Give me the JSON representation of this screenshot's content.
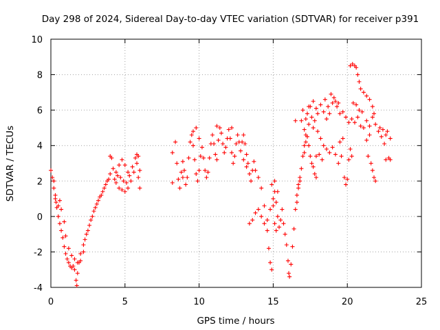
{
  "chart_data": {
    "type": "scatter",
    "title": "Day 298 of 2024, Sidereal Day-to-day VTEC variation (SDTVAR) for receiver p391",
    "xlabel": "GPS time / hours",
    "ylabel": "SDTVAR / TECUs",
    "xlim": [
      0,
      25
    ],
    "ylim": [
      -4,
      10
    ],
    "x_ticks": [
      "0",
      "5",
      "10",
      "15",
      "20",
      "25"
    ],
    "y_ticks": [
      "-4",
      "-2",
      "0",
      "2",
      "4",
      "6",
      "8",
      "10"
    ],
    "x_tick_values": [
      0,
      5,
      10,
      15,
      20,
      25
    ],
    "y_tick_values": [
      -4,
      -2,
      0,
      2,
      4,
      6,
      8,
      10
    ],
    "grid": true,
    "marker": "+",
    "color": "#ff0000",
    "series": [
      {
        "points": [
          [
            0.0,
            2.6
          ],
          [
            0.1,
            2.2
          ],
          [
            0.2,
            1.6
          ],
          [
            0.3,
            1.2
          ],
          [
            0.35,
            0.8
          ],
          [
            0.4,
            0.5
          ],
          [
            0.5,
            0.0
          ],
          [
            0.6,
            -0.4
          ],
          [
            0.7,
            -0.8
          ],
          [
            0.8,
            -1.2
          ],
          [
            0.9,
            -1.7
          ],
          [
            1.0,
            -2.1
          ],
          [
            1.1,
            -2.4
          ],
          [
            1.2,
            -2.6
          ],
          [
            1.3,
            -2.8
          ],
          [
            1.4,
            -2.9
          ],
          [
            1.5,
            -2.8
          ],
          [
            1.6,
            -3.0
          ],
          [
            1.7,
            -3.6
          ],
          [
            1.75,
            -3.9
          ],
          [
            1.8,
            -3.2
          ],
          [
            1.9,
            -2.6
          ],
          [
            2.0,
            -2.1
          ],
          [
            2.2,
            -1.6
          ],
          [
            2.4,
            -1.0
          ],
          [
            2.6,
            -0.5
          ],
          [
            2.8,
            0.0
          ],
          [
            3.0,
            0.5
          ],
          [
            3.2,
            0.9
          ],
          [
            3.4,
            1.2
          ],
          [
            3.6,
            1.6
          ],
          [
            3.8,
            2.0
          ],
          [
            4.0,
            2.4
          ],
          [
            4.0,
            3.4
          ],
          [
            4.1,
            3.3
          ],
          [
            4.2,
            2.7
          ],
          [
            4.4,
            1.9
          ],
          [
            4.6,
            1.6
          ],
          [
            4.8,
            1.5
          ],
          [
            5.0,
            1.4
          ],
          [
            5.2,
            1.6
          ],
          [
            5.4,
            2.0
          ],
          [
            5.6,
            2.5
          ],
          [
            5.8,
            3.0
          ],
          [
            5.9,
            3.4
          ],
          [
            6.0,
            2.6
          ],
          [
            6.0,
            1.6
          ],
          [
            0.2,
            2.0
          ],
          [
            0.3,
            1.0
          ],
          [
            0.5,
            0.6
          ],
          [
            0.6,
            0.9
          ],
          [
            0.7,
            0.4
          ],
          [
            0.9,
            -0.3
          ],
          [
            1.0,
            -1.1
          ],
          [
            1.2,
            -1.8
          ],
          [
            1.4,
            -2.2
          ],
          [
            1.6,
            -2.4
          ],
          [
            1.8,
            -2.6
          ],
          [
            2.0,
            -2.5
          ],
          [
            2.2,
            -2.0
          ],
          [
            2.3,
            -1.3
          ],
          [
            2.5,
            -0.8
          ],
          [
            2.7,
            -0.2
          ],
          [
            2.9,
            0.3
          ],
          [
            3.1,
            0.7
          ],
          [
            3.3,
            1.1
          ],
          [
            3.5,
            1.4
          ],
          [
            3.7,
            1.8
          ],
          [
            3.9,
            2.1
          ],
          [
            4.3,
            2.1
          ],
          [
            4.5,
            2.3
          ],
          [
            4.7,
            2.2
          ],
          [
            4.9,
            2.0
          ],
          [
            5.1,
            1.9
          ],
          [
            5.3,
            2.3
          ],
          [
            5.5,
            2.8
          ],
          [
            5.7,
            3.3
          ],
          [
            5.8,
            3.5
          ],
          [
            5.9,
            2.2
          ],
          [
            4.4,
            2.5
          ],
          [
            4.6,
            2.9
          ],
          [
            4.8,
            3.2
          ],
          [
            5.0,
            2.9
          ],
          [
            5.2,
            2.5
          ],
          [
            8.2,
            1.9
          ],
          [
            8.2,
            3.6
          ],
          [
            8.4,
            4.2
          ],
          [
            8.5,
            3.0
          ],
          [
            8.6,
            2.1
          ],
          [
            8.7,
            1.6
          ],
          [
            8.8,
            2.5
          ],
          [
            8.9,
            3.1
          ],
          [
            9.0,
            2.6
          ],
          [
            9.1,
            1.8
          ],
          [
            9.2,
            2.2
          ],
          [
            9.3,
            3.3
          ],
          [
            9.4,
            4.2
          ],
          [
            9.5,
            4.6
          ],
          [
            9.6,
            4.0
          ],
          [
            9.7,
            3.2
          ],
          [
            9.8,
            2.4
          ],
          [
            9.9,
            2.0
          ],
          [
            10.0,
            2.6
          ],
          [
            10.1,
            3.4
          ],
          [
            10.2,
            3.9
          ],
          [
            10.3,
            3.3
          ],
          [
            10.4,
            2.6
          ],
          [
            10.5,
            2.2
          ],
          [
            10.6,
            2.5
          ],
          [
            10.7,
            3.3
          ],
          [
            10.8,
            4.1
          ],
          [
            10.9,
            4.6
          ],
          [
            11.0,
            4.1
          ],
          [
            11.1,
            3.5
          ],
          [
            11.2,
            3.2
          ],
          [
            11.3,
            4.3
          ],
          [
            11.4,
            5.0
          ],
          [
            11.5,
            4.7
          ],
          [
            11.6,
            4.1
          ],
          [
            11.7,
            3.6
          ],
          [
            11.8,
            3.9
          ],
          [
            11.9,
            4.4
          ],
          [
            12.0,
            4.9
          ],
          [
            12.1,
            4.4
          ],
          [
            12.2,
            3.6
          ],
          [
            12.3,
            3.0
          ],
          [
            12.4,
            3.4
          ],
          [
            12.5,
            4.1
          ],
          [
            12.6,
            4.6
          ],
          [
            12.7,
            4.2
          ],
          [
            12.8,
            3.7
          ],
          [
            12.9,
            4.2
          ],
          [
            13.0,
            4.6
          ],
          [
            13.1,
            4.1
          ],
          [
            13.2,
            3.5
          ],
          [
            13.3,
            3.0
          ],
          [
            13.4,
            2.4
          ],
          [
            13.5,
            2.0
          ],
          [
            13.6,
            2.6
          ],
          [
            13.7,
            3.1
          ],
          [
            13.8,
            2.6
          ],
          [
            14.0,
            2.2
          ],
          [
            14.2,
            1.6
          ],
          [
            14.4,
            0.6
          ],
          [
            14.6,
            -0.8
          ],
          [
            14.7,
            -1.8
          ],
          [
            14.8,
            -2.6
          ],
          [
            14.9,
            -3.0
          ],
          [
            13.4,
            -0.4
          ],
          [
            13.6,
            -0.2
          ],
          [
            13.8,
            0.2
          ],
          [
            14.0,
            0.4
          ],
          [
            14.2,
            0.0
          ],
          [
            14.4,
            -0.4
          ],
          [
            14.6,
            -0.2
          ],
          [
            14.8,
            0.4
          ],
          [
            15.0,
            1.0
          ],
          [
            15.1,
            1.4
          ],
          [
            15.2,
            0.8
          ],
          [
            15.3,
            0.0
          ],
          [
            15.4,
            -0.6
          ],
          [
            15.5,
            -0.2
          ],
          [
            15.6,
            0.4
          ],
          [
            15.7,
            -0.4
          ],
          [
            15.8,
            -1.0
          ],
          [
            15.9,
            -1.6
          ],
          [
            15.0,
            0.6
          ],
          [
            15.1,
            -0.4
          ],
          [
            15.2,
            -0.8
          ],
          [
            14.9,
            1.8
          ],
          [
            15.1,
            2.0
          ],
          [
            15.3,
            1.4
          ],
          [
            9.6,
            4.8
          ],
          [
            9.8,
            5.0
          ],
          [
            10.0,
            4.4
          ],
          [
            11.2,
            5.1
          ],
          [
            12.2,
            5.0
          ],
          [
            13.0,
            3.2
          ],
          [
            13.2,
            2.8
          ],
          [
            8.9,
            2.2
          ],
          [
            16.0,
            -2.5
          ],
          [
            16.05,
            -3.2
          ],
          [
            16.1,
            -3.4
          ],
          [
            16.2,
            -2.7
          ],
          [
            16.3,
            -1.7
          ],
          [
            16.4,
            -0.7
          ],
          [
            16.5,
            0.4
          ],
          [
            16.6,
            1.2
          ],
          [
            16.7,
            1.8
          ],
          [
            16.8,
            2.2
          ],
          [
            16.9,
            2.7
          ],
          [
            17.0,
            3.4
          ],
          [
            17.1,
            4.0
          ],
          [
            17.2,
            4.6
          ],
          [
            17.3,
            4.5
          ],
          [
            17.4,
            4.0
          ],
          [
            17.5,
            3.4
          ],
          [
            17.6,
            3.0
          ],
          [
            17.7,
            2.8
          ],
          [
            17.8,
            2.4
          ],
          [
            17.9,
            2.2
          ],
          [
            17.2,
            5.5
          ],
          [
            17.3,
            5.8
          ],
          [
            17.5,
            6.2
          ],
          [
            17.6,
            5.6
          ],
          [
            17.8,
            5.4
          ],
          [
            18.0,
            5.8
          ],
          [
            18.2,
            6.3
          ],
          [
            18.4,
            5.9
          ],
          [
            18.6,
            5.5
          ],
          [
            18.8,
            5.8
          ],
          [
            19.0,
            6.4
          ],
          [
            19.1,
            6.7
          ],
          [
            19.3,
            6.2
          ],
          [
            19.5,
            5.8
          ],
          [
            19.7,
            5.9
          ],
          [
            19.9,
            5.6
          ],
          [
            20.1,
            5.3
          ],
          [
            20.3,
            5.5
          ],
          [
            20.5,
            5.3
          ],
          [
            20.7,
            5.6
          ],
          [
            20.9,
            5.1
          ],
          [
            21.1,
            5.0
          ],
          [
            21.3,
            5.4
          ],
          [
            21.5,
            5.1
          ],
          [
            21.7,
            5.6
          ],
          [
            21.9,
            5.2
          ],
          [
            22.1,
            4.8
          ],
          [
            22.3,
            4.5
          ],
          [
            22.5,
            4.1
          ],
          [
            22.7,
            4.8
          ],
          [
            22.9,
            4.4
          ],
          [
            22.6,
            3.2
          ],
          [
            22.8,
            3.3
          ],
          [
            22.9,
            3.2
          ],
          [
            17.0,
            6.0
          ],
          [
            16.9,
            5.4
          ],
          [
            17.1,
            4.9
          ],
          [
            17.4,
            5.2
          ],
          [
            17.7,
            5.0
          ],
          [
            18.0,
            4.8
          ],
          [
            18.2,
            4.4
          ],
          [
            18.4,
            4.0
          ],
          [
            18.6,
            3.8
          ],
          [
            18.8,
            3.6
          ],
          [
            19.0,
            3.9
          ],
          [
            19.2,
            3.5
          ],
          [
            19.4,
            3.0
          ],
          [
            19.6,
            3.4
          ],
          [
            19.8,
            2.2
          ],
          [
            19.9,
            1.8
          ],
          [
            20.0,
            2.1
          ],
          [
            20.1,
            3.2
          ],
          [
            20.2,
            3.8
          ],
          [
            20.3,
            3.4
          ],
          [
            20.2,
            8.5
          ],
          [
            20.35,
            8.6
          ],
          [
            20.5,
            8.5
          ],
          [
            20.6,
            8.4
          ],
          [
            20.7,
            8.0
          ],
          [
            20.8,
            7.6
          ],
          [
            20.9,
            7.2
          ],
          [
            21.1,
            7.0
          ],
          [
            21.3,
            6.8
          ],
          [
            21.5,
            6.6
          ],
          [
            21.7,
            6.2
          ],
          [
            21.8,
            5.8
          ],
          [
            21.4,
            3.4
          ],
          [
            21.6,
            3.0
          ],
          [
            21.7,
            2.6
          ],
          [
            21.8,
            2.2
          ],
          [
            21.9,
            2.0
          ],
          [
            21.5,
            4.6
          ],
          [
            21.3,
            4.3
          ],
          [
            18.1,
            3.5
          ],
          [
            18.3,
            3.2
          ],
          [
            16.6,
            0.8
          ],
          [
            16.7,
            1.6
          ],
          [
            16.8,
            2.0
          ],
          [
            17.1,
            3.6
          ],
          [
            17.2,
            4.2
          ],
          [
            16.5,
            5.4
          ],
          [
            17.9,
            3.4
          ],
          [
            19.5,
            4.2
          ],
          [
            19.7,
            4.4
          ],
          [
            20.4,
            6.4
          ],
          [
            20.6,
            6.3
          ],
          [
            20.8,
            6.0
          ],
          [
            21.0,
            5.9
          ],
          [
            22.2,
            5.0
          ],
          [
            22.4,
            4.9
          ],
          [
            22.6,
            4.6
          ],
          [
            18.9,
            6.9
          ],
          [
            19.2,
            6.5
          ],
          [
            19.4,
            6.4
          ],
          [
            18.5,
            6.6
          ],
          [
            18.7,
            6.2
          ],
          [
            17.9,
            6.1
          ],
          [
            17.7,
            6.5
          ],
          [
            17.4,
            6.2
          ]
        ]
      }
    ]
  }
}
